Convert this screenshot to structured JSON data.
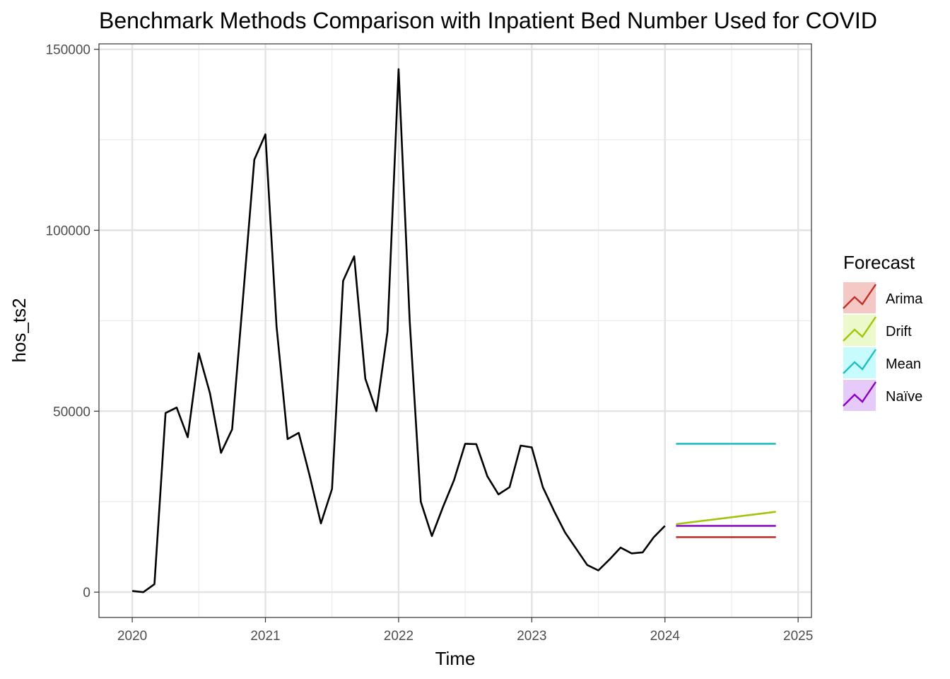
{
  "chart_data": {
    "type": "line",
    "title": "Benchmark Methods Comparison with Inpatient Bed Number Used for COVID",
    "xlabel": "Time",
    "ylabel": "hos_ts2",
    "xlim": [
      2019.75,
      2025.1
    ],
    "ylim": [
      -7000,
      151500
    ],
    "x_ticks": [
      {
        "value": 2020,
        "label": "2020"
      },
      {
        "value": 2021,
        "label": "2021"
      },
      {
        "value": 2022,
        "label": "2022"
      },
      {
        "value": 2023,
        "label": "2023"
      },
      {
        "value": 2024,
        "label": "2024"
      },
      {
        "value": 2025,
        "label": "2025"
      }
    ],
    "y_ticks": [
      {
        "value": 0,
        "label": "0"
      },
      {
        "value": 50000,
        "label": "50000"
      },
      {
        "value": 100000,
        "label": "100000"
      },
      {
        "value": 150000,
        "label": "150000"
      }
    ],
    "y_minor_ticks": [
      25000,
      75000,
      125000
    ],
    "x_minor_ticks": [
      2020.5,
      2021.5,
      2022.5,
      2023.5,
      2024.5
    ],
    "grid": true,
    "observed": {
      "color": "#000000",
      "x_start": 2020.0,
      "x_step": 0.0833333,
      "values": [
        300,
        0,
        2200,
        49500,
        51000,
        42800,
        66000,
        55000,
        38500,
        45000,
        82000,
        119500,
        126500,
        73500,
        42300,
        44000,
        32000,
        19000,
        28500,
        86000,
        92800,
        59000,
        50000,
        72000,
        144500,
        75000,
        25000,
        15500,
        23500,
        31000,
        41000,
        40900,
        32000,
        27000,
        29000,
        40500,
        40000,
        29000,
        22500,
        16500,
        12000,
        7500,
        6000,
        9000,
        12300,
        10700,
        11000,
        15200,
        18300
      ]
    },
    "series": [
      {
        "name": "Arima",
        "color": "#c03028",
        "x": [
          2024.083,
          2024.833
        ],
        "values": [
          15200,
          15200
        ]
      },
      {
        "name": "Drift",
        "color": "#a3c40b",
        "x": [
          2024.083,
          2024.833
        ],
        "values": [
          18800,
          22200
        ]
      },
      {
        "name": "Mean",
        "color": "#20bfbf",
        "x": [
          2024.083,
          2024.833
        ],
        "values": [
          41000,
          41000
        ]
      },
      {
        "name": "Naïve",
        "color": "#8a00c8",
        "x": [
          2024.083,
          2024.833
        ],
        "values": [
          18300,
          18300
        ]
      }
    ],
    "legend": {
      "title": "Forecast",
      "placement": "right",
      "items": [
        {
          "label": "Arima",
          "color": "#c03028",
          "fill": "#f4c9c5"
        },
        {
          "label": "Drift",
          "color": "#a3c40b",
          "fill": "#ecfacb"
        },
        {
          "label": "Mean",
          "color": "#20bfbf",
          "fill": "#c8fbfb"
        },
        {
          "label": "Naïve",
          "color": "#8a00c8",
          "fill": "#e6caf9"
        }
      ]
    }
  }
}
